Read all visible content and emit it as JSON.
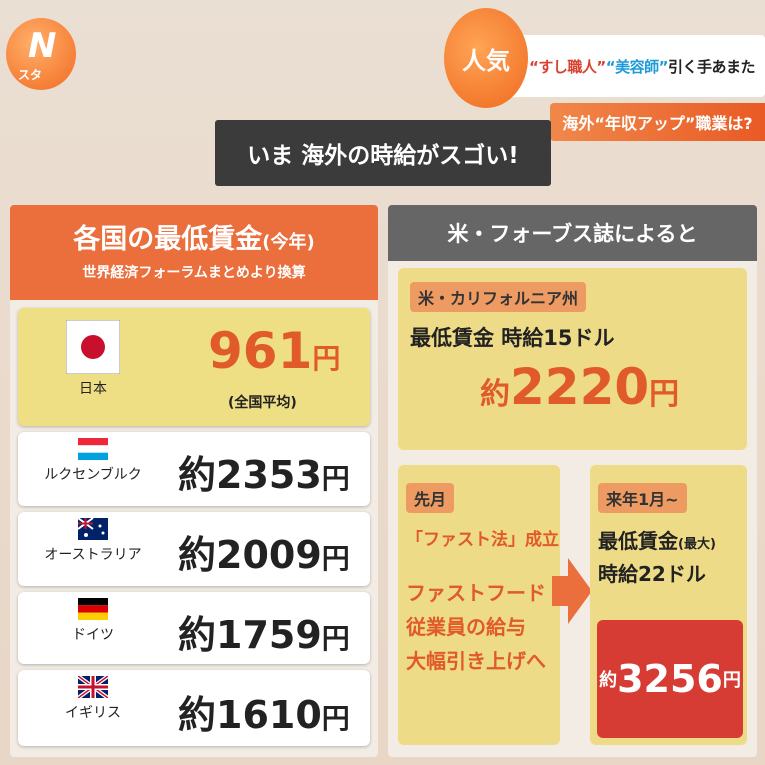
{
  "logo": {
    "letter": "N",
    "sub": "スタ"
  },
  "headline": {
    "badge": "人気",
    "part1": "“すし職人”",
    "part2": "“美容師”",
    "part3": "引く手あまた",
    "sub": "海外“年収アップ”職業は?"
  },
  "title": "いま 海外の時給がスゴい!",
  "left": {
    "title": "各国の最低賃金",
    "title_paren": "(今年)",
    "subtitle": "世界経済フォーラムまとめより換算",
    "rows": [
      {
        "country": "日本",
        "amount": "961",
        "unit": "円",
        "note": "(全国平均)",
        "flag": "japan"
      },
      {
        "country": "ルクセンブルク",
        "amount": "約2353",
        "unit": "円",
        "flag": "luxembourg"
      },
      {
        "country": "オーストラリア",
        "amount": "約2009",
        "unit": "円",
        "flag": "australia"
      },
      {
        "country": "ドイツ",
        "amount": "約1759",
        "unit": "円",
        "flag": "germany"
      },
      {
        "country": "イギリス",
        "amount": "約1610",
        "unit": "円",
        "flag": "uk"
      }
    ]
  },
  "right": {
    "header": "米・フォーブス誌によると",
    "california": {
      "tag": "米・カリフォルニア州",
      "line": "最低賃金 時給15ドル",
      "prefix": "約",
      "amount": "2220",
      "unit": "円"
    },
    "last_month": {
      "tag": "先月",
      "law": "「ファスト法」成立",
      "desc1": "ファストフード",
      "desc2": "従業員の給与",
      "desc3": "大幅引き上げへ"
    },
    "next_year": {
      "tag": "来年1月~",
      "line1": "最低賃金",
      "line1_paren": "(最大)",
      "line2": "時給22ドル",
      "prefix": "約",
      "amount": "3256",
      "unit": "円"
    }
  },
  "colors": {
    "accent": "#ea6f3d",
    "red": "#d63c34",
    "yellow": "#eedb87",
    "headline_red": "#d9412f",
    "headline_blue": "#1e9bd7"
  }
}
